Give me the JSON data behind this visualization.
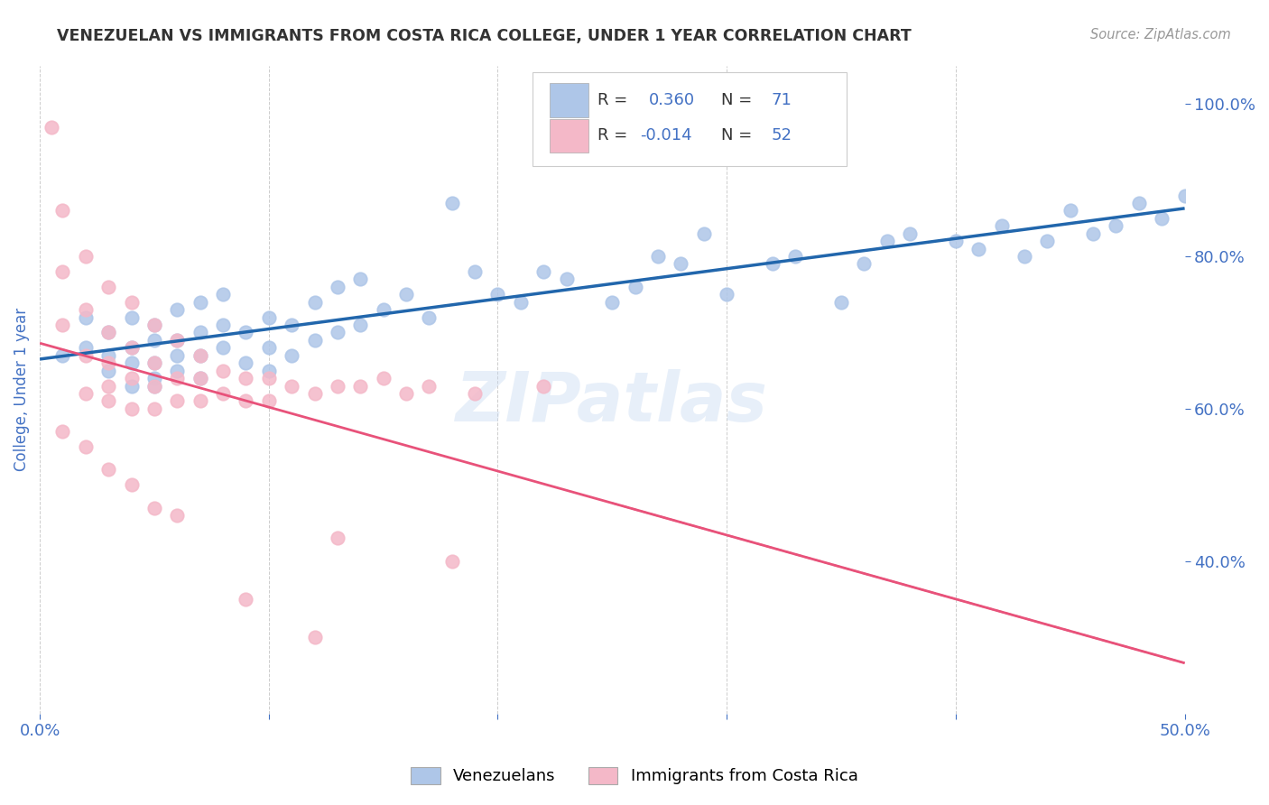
{
  "title": "VENEZUELAN VS IMMIGRANTS FROM COSTA RICA COLLEGE, UNDER 1 YEAR CORRELATION CHART",
  "source": "Source: ZipAtlas.com",
  "ylabel": "College, Under 1 year",
  "xlim": [
    0.0,
    0.5
  ],
  "ylim": [
    0.2,
    1.05
  ],
  "xtick_positions": [
    0.0,
    0.1,
    0.2,
    0.3,
    0.4,
    0.5
  ],
  "xtick_labels": [
    "0.0%",
    "",
    "",
    "",
    "",
    "50.0%"
  ],
  "ytick_vals": [
    0.4,
    0.6,
    0.8,
    1.0
  ],
  "ytick_labels_right": [
    "40.0%",
    "60.0%",
    "80.0%",
    "100.0%"
  ],
  "legend_label1": "Venezuelans",
  "legend_label2": "Immigrants from Costa Rica",
  "watermark": "ZIPatlas",
  "blue_scatter_x": [
    0.01,
    0.02,
    0.02,
    0.03,
    0.03,
    0.03,
    0.04,
    0.04,
    0.04,
    0.04,
    0.05,
    0.05,
    0.05,
    0.05,
    0.05,
    0.06,
    0.06,
    0.06,
    0.06,
    0.07,
    0.07,
    0.07,
    0.07,
    0.08,
    0.08,
    0.08,
    0.09,
    0.09,
    0.1,
    0.1,
    0.1,
    0.11,
    0.11,
    0.12,
    0.12,
    0.13,
    0.13,
    0.14,
    0.14,
    0.15,
    0.16,
    0.17,
    0.18,
    0.19,
    0.2,
    0.21,
    0.22,
    0.23,
    0.25,
    0.26,
    0.27,
    0.28,
    0.29,
    0.3,
    0.32,
    0.33,
    0.35,
    0.37,
    0.4,
    0.42,
    0.43,
    0.44,
    0.45,
    0.46,
    0.47,
    0.48,
    0.49,
    0.5,
    0.38,
    0.41,
    0.36
  ],
  "blue_scatter_y": [
    0.67,
    0.68,
    0.72,
    0.65,
    0.67,
    0.7,
    0.63,
    0.66,
    0.68,
    0.72,
    0.63,
    0.64,
    0.66,
    0.69,
    0.71,
    0.65,
    0.67,
    0.69,
    0.73,
    0.64,
    0.67,
    0.7,
    0.74,
    0.68,
    0.71,
    0.75,
    0.66,
    0.7,
    0.65,
    0.68,
    0.72,
    0.67,
    0.71,
    0.69,
    0.74,
    0.7,
    0.76,
    0.71,
    0.77,
    0.73,
    0.75,
    0.72,
    0.87,
    0.78,
    0.75,
    0.74,
    0.78,
    0.77,
    0.74,
    0.76,
    0.8,
    0.79,
    0.83,
    0.75,
    0.79,
    0.8,
    0.74,
    0.82,
    0.82,
    0.84,
    0.8,
    0.82,
    0.86,
    0.83,
    0.84,
    0.87,
    0.85,
    0.88,
    0.83,
    0.81,
    0.79
  ],
  "pink_scatter_x": [
    0.005,
    0.01,
    0.01,
    0.01,
    0.02,
    0.02,
    0.02,
    0.02,
    0.03,
    0.03,
    0.03,
    0.03,
    0.03,
    0.04,
    0.04,
    0.04,
    0.04,
    0.05,
    0.05,
    0.05,
    0.05,
    0.06,
    0.06,
    0.06,
    0.07,
    0.07,
    0.07,
    0.08,
    0.08,
    0.09,
    0.09,
    0.1,
    0.1,
    0.11,
    0.12,
    0.13,
    0.14,
    0.15,
    0.16,
    0.17,
    0.19,
    0.22,
    0.01,
    0.02,
    0.03,
    0.04,
    0.05,
    0.06,
    0.13,
    0.18,
    0.09,
    0.12
  ],
  "pink_scatter_y": [
    0.97,
    0.86,
    0.78,
    0.71,
    0.8,
    0.73,
    0.67,
    0.62,
    0.76,
    0.7,
    0.66,
    0.63,
    0.61,
    0.74,
    0.68,
    0.64,
    0.6,
    0.71,
    0.66,
    0.63,
    0.6,
    0.69,
    0.64,
    0.61,
    0.67,
    0.64,
    0.61,
    0.65,
    0.62,
    0.64,
    0.61,
    0.64,
    0.61,
    0.63,
    0.62,
    0.63,
    0.63,
    0.64,
    0.62,
    0.63,
    0.62,
    0.63,
    0.57,
    0.55,
    0.52,
    0.5,
    0.47,
    0.46,
    0.43,
    0.4,
    0.35,
    0.3
  ],
  "blue_color": "#aec6e8",
  "pink_color": "#f4b8c8",
  "blue_line_color": "#2166ac",
  "pink_line_color": "#e8527a",
  "background_color": "#ffffff",
  "grid_color": "#c8c8c8",
  "title_color": "#333333",
  "axis_label_color": "#4472c4"
}
